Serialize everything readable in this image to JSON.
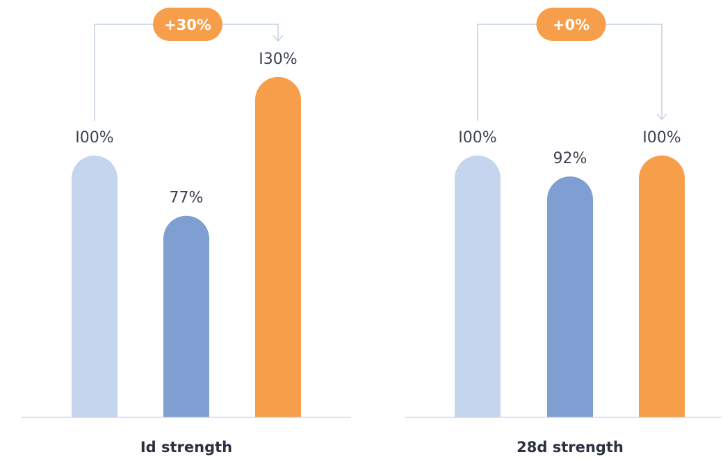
{
  "chart_data": [
    {
      "type": "bar",
      "categories": [
        "",
        "",
        ""
      ],
      "values": [
        100,
        77,
        130
      ],
      "value_labels": [
        "I00%",
        "77%",
        "I30%"
      ],
      "colors": [
        "#c5d5ee",
        "#7f9fd3",
        "#f79e4a"
      ],
      "xlabel": "Id strength",
      "change_badge": "+30%",
      "ylim": [
        0,
        130
      ],
      "grid": false
    },
    {
      "type": "bar",
      "categories": [
        "",
        "",
        ""
      ],
      "values": [
        100,
        92,
        100
      ],
      "value_labels": [
        "I00%",
        "92%",
        "I00%"
      ],
      "colors": [
        "#c5d5ee",
        "#7f9fd3",
        "#f79e4a"
      ],
      "xlabel": "28d strength",
      "change_badge": "+0%",
      "ylim": [
        0,
        130
      ],
      "grid": false
    }
  ],
  "badge_color": "#f79e4a"
}
